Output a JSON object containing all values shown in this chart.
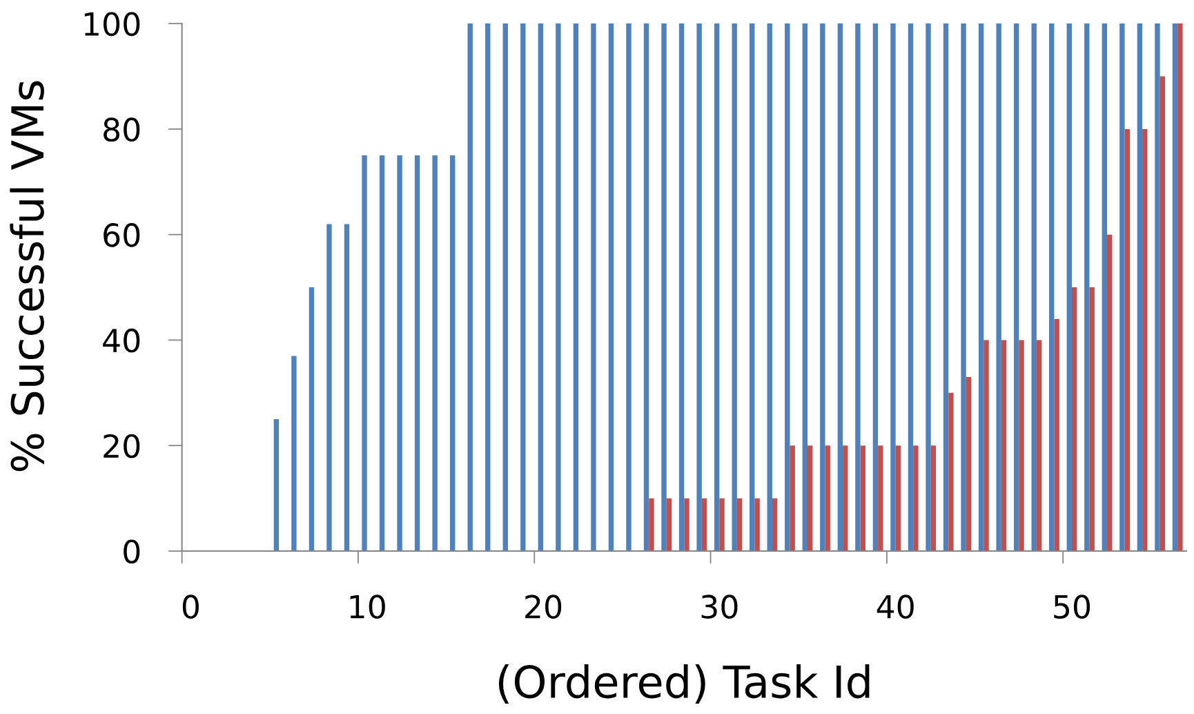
{
  "chart_data": {
    "type": "bar",
    "xlabel": "(Ordered) Task Id",
    "ylabel": "% Successful VMs",
    "categories": [
      "0",
      null,
      null,
      null,
      null,
      null,
      null,
      null,
      null,
      null,
      "10",
      null,
      null,
      null,
      null,
      null,
      null,
      null,
      null,
      null,
      "20",
      null,
      null,
      null,
      null,
      null,
      null,
      null,
      null,
      null,
      "30",
      null,
      null,
      null,
      null,
      null,
      null,
      null,
      null,
      null,
      "40",
      null,
      null,
      null,
      null,
      null,
      null,
      null,
      null,
      null,
      "50",
      null,
      null,
      null,
      null,
      null,
      null
    ],
    "series": [
      {
        "color": "#4f81bd",
        "values": [
          null,
          null,
          null,
          null,
          null,
          25,
          37,
          50,
          62,
          62,
          75,
          75,
          75,
          75,
          75,
          75,
          100,
          100,
          100,
          100,
          100,
          100,
          100,
          100,
          100,
          100,
          100,
          100,
          100,
          100,
          100,
          100,
          100,
          100,
          100,
          100,
          100,
          100,
          100,
          100,
          100,
          100,
          100,
          100,
          100,
          100,
          100,
          100,
          100,
          100,
          100,
          100,
          100,
          100,
          100,
          100,
          100
        ]
      },
      {
        "color": "#c0504d",
        "values": [
          null,
          null,
          null,
          null,
          null,
          null,
          null,
          null,
          null,
          null,
          null,
          null,
          null,
          null,
          null,
          null,
          null,
          null,
          null,
          null,
          null,
          null,
          null,
          null,
          null,
          null,
          10,
          10,
          10,
          10,
          10,
          10,
          10,
          10,
          20,
          20,
          20,
          20,
          20,
          20,
          20,
          20,
          20,
          30,
          33,
          40,
          40,
          40,
          40,
          44,
          50,
          50,
          60,
          80,
          80,
          90,
          100
        ]
      }
    ],
    "ylim": [
      0,
      100
    ],
    "yticks": [
      0,
      20,
      40,
      60,
      80,
      100
    ]
  }
}
